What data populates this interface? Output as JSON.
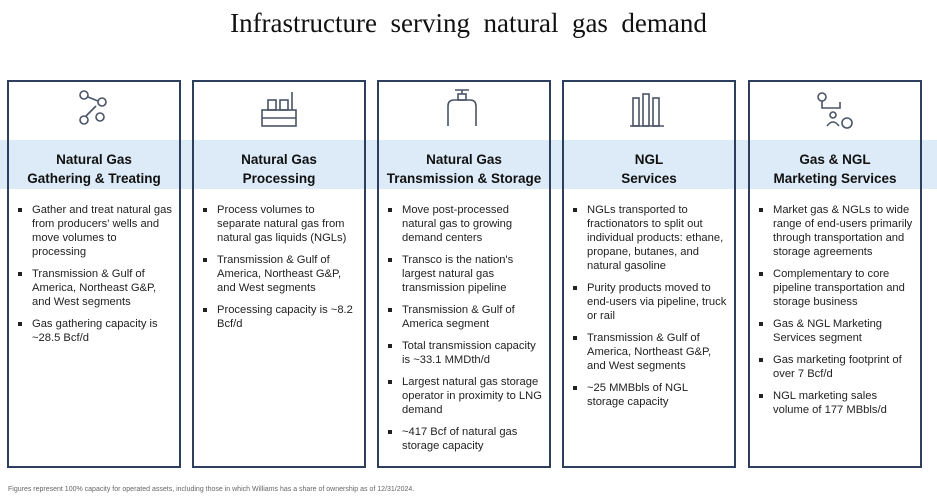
{
  "header": {
    "title": "Infrastructure  serving  natural  gas  demand"
  },
  "columns": [
    {
      "title": [
        "Natural Gas",
        "Gathering & Treating"
      ],
      "bullets": [
        "Gather and treat natural gas from producers' wells and move volumes to processing",
        "Transmission & Gulf of America, Northeast G&P, and West segments",
        "Gas gathering capacity is ~28.5 Bcf/d"
      ]
    },
    {
      "title": [
        "Natural Gas",
        "Processing"
      ],
      "bullets": [
        "Process volumes to separate natural gas from natural gas liquids (NGLs)",
        "Transmission & Gulf of America, Northeast G&P, and West segments",
        "Processing capacity is ~8.2 Bcf/d"
      ]
    },
    {
      "title": [
        "Natural Gas",
        "Transmission & Storage"
      ],
      "bullets": [
        "Move post-processed natural gas to growing demand centers",
        "Transco is the nation's largest natural gas transmission pipeline",
        "Transmission & Gulf of America segment",
        "Total transmission capacity is ~33.1 MMDth/d",
        "Largest natural gas storage operator in proximity to LNG demand",
        "~417 Bcf of natural gas storage capacity"
      ]
    },
    {
      "title": [
        "NGL",
        "Services"
      ],
      "bullets": [
        "NGLs transported to fractionators to split out individual products: ethane, propane, butanes, and natural gasoline",
        "Purity products moved to end-users via pipeline, truck or rail",
        "Transmission & Gulf of America, Northeast G&P, and West segments",
        "~25 MMBbls of NGL storage capacity"
      ]
    },
    {
      "title": [
        "Gas & NGL",
        "Marketing Services"
      ],
      "bullets": [
        "Market gas & NGLs to wide range of end-users primarily through transportation and storage agreements",
        "Complementary to core pipeline transportation and storage business",
        "Gas & NGL Marketing Services segment",
        "Gas marketing footprint of over 7 Bcf/d",
        "NGL marketing sales volume of 177 MBbls/d"
      ]
    }
  ],
  "footnote": "Figures represent 100% capacity for operated assets, including those in which Williams has a share of ownership as of 12/31/2024."
}
